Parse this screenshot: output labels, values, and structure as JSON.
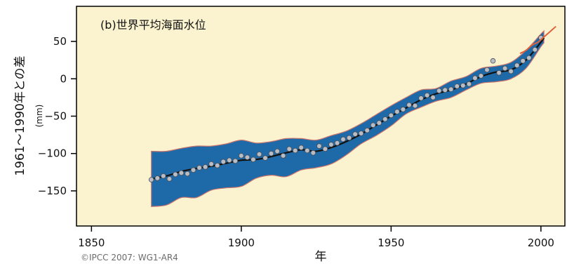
{
  "chart_data": {
    "type": "line",
    "title": "(b)世界平均海面水位",
    "xlabel": "年",
    "ylabel": "1961～1990年との差",
    "ylabel_unit": "(mm)",
    "xlim": [
      1845,
      2008
    ],
    "ylim": [
      -197,
      97
    ],
    "xticks": [
      1850,
      1900,
      1950,
      2000
    ],
    "yticks": [
      50,
      0,
      -50,
      -100,
      -150
    ],
    "ytick_labels": [
      "50",
      "0",
      "−50",
      "−100",
      "−150"
    ],
    "grid": false,
    "colors": {
      "plot_background": "#fbf3d0",
      "uncertainty_band": "#1e6aa8",
      "band_edge": "#c8746e",
      "smoothed_line": "#111111",
      "observation_marker": "#b8bcc4",
      "satellite_line": "#e0603a"
    },
    "series": [
      {
        "role": "uncertainty_band",
        "x": [
          1870,
          1875,
          1880,
          1885,
          1890,
          1895,
          1900,
          1905,
          1910,
          1915,
          1920,
          1925,
          1930,
          1935,
          1940,
          1945,
          1950,
          1955,
          1960,
          1965,
          1970,
          1975,
          1980,
          1985,
          1990,
          1995,
          2000,
          2001
        ],
        "upper": [
          -97,
          -97,
          -93,
          -90,
          -90,
          -87,
          -82,
          -86,
          -84,
          -80,
          -80,
          -82,
          -76,
          -70,
          -60,
          -48,
          -36,
          -25,
          -15,
          -13,
          -3,
          3,
          14,
          17,
          22,
          38,
          60,
          64
        ],
        "lower": [
          -171,
          -169,
          -159,
          -159,
          -149,
          -146,
          -144,
          -133,
          -129,
          -131,
          -122,
          -119,
          -114,
          -102,
          -87,
          -76,
          -63,
          -47,
          -38,
          -30,
          -25,
          -15,
          -6,
          -4,
          0,
          14,
          43,
          48
        ]
      },
      {
        "role": "smoothed_estimate",
        "x": [
          1870,
          1875,
          1880,
          1885,
          1890,
          1895,
          1900,
          1905,
          1910,
          1915,
          1920,
          1925,
          1930,
          1935,
          1940,
          1945,
          1950,
          1955,
          1960,
          1965,
          1970,
          1975,
          1980,
          1985,
          1990,
          1995,
          2000,
          2001
        ],
        "y": [
          -134,
          -130,
          -124,
          -120,
          -117,
          -113,
          -109,
          -108,
          -104,
          -99,
          -95,
          -97,
          -92,
          -84,
          -74,
          -62,
          -50,
          -39,
          -28,
          -20,
          -15,
          -7,
          3,
          9,
          12,
          25,
          49,
          55
        ]
      },
      {
        "role": "annual_observations",
        "x": [
          1870,
          1872,
          1874,
          1876,
          1878,
          1880,
          1882,
          1884,
          1886,
          1888,
          1890,
          1892,
          1894,
          1896,
          1898,
          1900,
          1902,
          1904,
          1906,
          1908,
          1910,
          1912,
          1914,
          1916,
          1918,
          1920,
          1922,
          1924,
          1926,
          1928,
          1930,
          1932,
          1934,
          1936,
          1938,
          1940,
          1942,
          1944,
          1946,
          1948,
          1950,
          1952,
          1954,
          1956,
          1958,
          1960,
          1962,
          1964,
          1966,
          1968,
          1970,
          1972,
          1974,
          1976,
          1978,
          1980,
          1982,
          1984,
          1986,
          1988,
          1990,
          1992,
          1994,
          1996,
          1998,
          2000
        ],
        "y": [
          -135,
          -133,
          -130,
          -134,
          -128,
          -126,
          -127,
          -122,
          -119,
          -118,
          -114,
          -116,
          -111,
          -109,
          -110,
          -103,
          -105,
          -108,
          -101,
          -106,
          -100,
          -97,
          -103,
          -94,
          -96,
          -92,
          -96,
          -99,
          -90,
          -94,
          -88,
          -86,
          -81,
          -79,
          -74,
          -73,
          -69,
          -62,
          -59,
          -54,
          -49,
          -44,
          -41,
          -35,
          -36,
          -26,
          -22,
          -25,
          -16,
          -15,
          -14,
          -10,
          -9,
          -7,
          1,
          4,
          12,
          24,
          8,
          14,
          10,
          18,
          24,
          28,
          39,
          55
        ]
      },
      {
        "role": "satellite_altimetry",
        "x": [
          1993,
          1995,
          1997,
          1999,
          2001,
          2003,
          2005
        ],
        "y": [
          34,
          38,
          45,
          49,
          56,
          63,
          70
        ]
      }
    ],
    "annotations": [
      {
        "text": "©IPCC 2007: WG1-AR4",
        "position": "bottom-left"
      }
    ]
  }
}
